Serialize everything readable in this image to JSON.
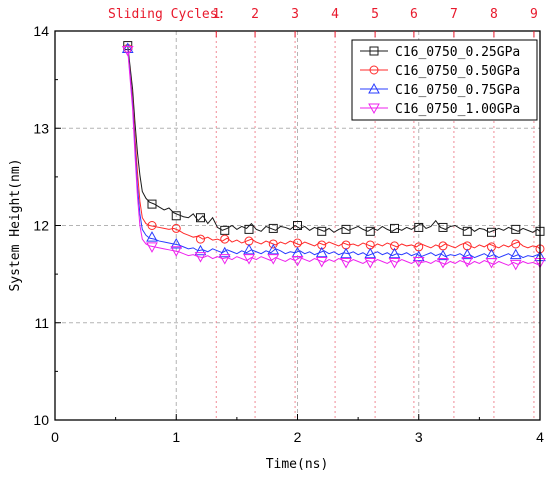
{
  "chart_data": {
    "type": "line",
    "xlabel": "Time(ns)",
    "ylabel": "System Height(nm)",
    "xlim": [
      0,
      4
    ],
    "ylim": [
      10,
      14
    ],
    "x_ticks": [
      0,
      1,
      2,
      3,
      4
    ],
    "y_ticks": [
      10,
      11,
      12,
      13,
      14
    ],
    "grid": "dashed gray at x = 1,2,3",
    "top_axis": {
      "label": "Sliding Cycles:",
      "ticks": [
        {
          "label": "1",
          "x": 1.33
        },
        {
          "label": "2",
          "x": 1.65
        },
        {
          "label": "3",
          "x": 1.98
        },
        {
          "label": "4",
          "x": 2.31
        },
        {
          "label": "5",
          "x": 2.64
        },
        {
          "label": "6",
          "x": 2.96
        },
        {
          "label": "7",
          "x": 3.29
        },
        {
          "label": "8",
          "x": 3.62
        },
        {
          "label": "9",
          "x": 3.95
        }
      ],
      "color": "#e8192c"
    },
    "legend_position": "top-right",
    "series": [
      {
        "name": "C16_0750_0.25GPa",
        "color": "#1a1a1a",
        "marker": "square",
        "x": [
          0.6,
          0.64,
          0.66,
          0.68,
          0.7,
          0.72,
          0.75,
          0.78,
          0.82,
          0.86,
          0.9,
          0.94,
          0.98,
          1.02,
          1.06,
          1.1,
          1.14,
          1.18,
          1.22,
          1.26,
          1.3,
          1.34,
          1.38,
          1.42,
          1.46,
          1.5,
          1.54,
          1.58,
          1.62,
          1.66,
          1.7,
          1.74,
          1.78,
          1.82,
          1.86,
          1.9,
          1.94,
          1.98,
          2.02,
          2.06,
          2.1,
          2.14,
          2.18,
          2.22,
          2.26,
          2.3,
          2.34,
          2.38,
          2.42,
          2.46,
          2.5,
          2.54,
          2.58,
          2.62,
          2.66,
          2.7,
          2.74,
          2.78,
          2.82,
          2.86,
          2.9,
          2.94,
          2.98,
          3.02,
          3.06,
          3.1,
          3.14,
          3.18,
          3.22,
          3.26,
          3.3,
          3.34,
          3.38,
          3.42,
          3.46,
          3.5,
          3.54,
          3.58,
          3.62,
          3.66,
          3.7,
          3.74,
          3.78,
          3.82,
          3.86,
          3.9,
          3.94,
          3.98,
          4.0
        ],
        "y": [
          13.85,
          13.4,
          13.05,
          12.75,
          12.52,
          12.35,
          12.28,
          12.24,
          12.22,
          12.19,
          12.16,
          12.18,
          12.13,
          12.11,
          12.09,
          12.08,
          12.12,
          12.05,
          12.1,
          12.02,
          12.08,
          11.98,
          11.95,
          11.97,
          12.0,
          11.96,
          11.99,
          11.97,
          12.02,
          11.96,
          11.94,
          11.99,
          11.97,
          11.95,
          11.99,
          11.98,
          11.96,
          12.0,
          11.97,
          11.99,
          11.95,
          11.98,
          11.96,
          11.94,
          11.97,
          11.93,
          11.96,
          11.98,
          11.95,
          11.97,
          11.99,
          11.96,
          11.94,
          11.97,
          11.95,
          11.99,
          11.96,
          11.94,
          11.97,
          11.95,
          11.98,
          11.96,
          11.99,
          12.02,
          11.97,
          11.99,
          12.05,
          11.98,
          11.96,
          11.99,
          12.0,
          11.97,
          11.95,
          11.98,
          11.94,
          11.97,
          11.96,
          11.93,
          11.95,
          11.97,
          11.95,
          11.98,
          11.96,
          11.94,
          11.97,
          11.95,
          11.93,
          11.96,
          11.94
        ],
        "marker_x": [
          0.6,
          0.8,
          1.0,
          1.2,
          1.4,
          1.6,
          1.8,
          2.0,
          2.2,
          2.4,
          2.6,
          2.8,
          3.0,
          3.2,
          3.4,
          3.6,
          3.8,
          4.0
        ],
        "marker_y": [
          13.85,
          12.22,
          12.1,
          12.08,
          11.95,
          11.96,
          11.97,
          12.0,
          11.94,
          11.96,
          11.94,
          11.97,
          11.98,
          11.98,
          11.94,
          11.93,
          11.96,
          11.94
        ]
      },
      {
        "name": "C16_0750_0.50GPa",
        "color": "#ff2a2a",
        "marker": "circle",
        "x": [
          0.6,
          0.64,
          0.66,
          0.68,
          0.7,
          0.72,
          0.75,
          0.78,
          0.82,
          0.86,
          0.9,
          0.94,
          0.98,
          1.02,
          1.06,
          1.1,
          1.14,
          1.18,
          1.22,
          1.26,
          1.3,
          1.34,
          1.38,
          1.42,
          1.46,
          1.5,
          1.54,
          1.58,
          1.62,
          1.66,
          1.7,
          1.74,
          1.78,
          1.82,
          1.86,
          1.9,
          1.94,
          1.98,
          2.02,
          2.06,
          2.1,
          2.14,
          2.18,
          2.22,
          2.26,
          2.3,
          2.34,
          2.38,
          2.42,
          2.46,
          2.5,
          2.54,
          2.58,
          2.62,
          2.66,
          2.7,
          2.74,
          2.78,
          2.82,
          2.86,
          2.9,
          2.94,
          2.98,
          3.02,
          3.06,
          3.1,
          3.14,
          3.18,
          3.22,
          3.26,
          3.3,
          3.34,
          3.38,
          3.42,
          3.46,
          3.5,
          3.54,
          3.58,
          3.62,
          3.66,
          3.7,
          3.74,
          3.78,
          3.82,
          3.86,
          3.9,
          3.94,
          3.98,
          4.0
        ],
        "y": [
          13.82,
          13.3,
          12.9,
          12.55,
          12.25,
          12.08,
          12.02,
          12.0,
          11.99,
          11.98,
          11.97,
          11.96,
          11.97,
          11.95,
          11.92,
          11.9,
          11.88,
          11.89,
          11.86,
          11.88,
          11.85,
          11.86,
          11.84,
          11.87,
          11.83,
          11.85,
          11.82,
          11.84,
          11.86,
          11.83,
          11.81,
          11.84,
          11.82,
          11.8,
          11.83,
          11.81,
          11.84,
          11.82,
          11.8,
          11.83,
          11.81,
          11.79,
          11.82,
          11.8,
          11.83,
          11.81,
          11.79,
          11.82,
          11.8,
          11.81,
          11.79,
          11.82,
          11.8,
          11.78,
          11.81,
          11.79,
          11.82,
          11.8,
          11.78,
          11.81,
          11.79,
          11.8,
          11.78,
          11.81,
          11.79,
          11.77,
          11.8,
          11.78,
          11.81,
          11.79,
          11.77,
          11.8,
          11.82,
          11.79,
          11.77,
          11.8,
          11.78,
          11.81,
          11.79,
          11.77,
          11.8,
          11.78,
          11.81,
          11.83,
          11.79,
          11.77,
          11.79,
          11.78,
          11.76
        ],
        "marker_x": [
          0.6,
          0.8,
          1.0,
          1.2,
          1.4,
          1.6,
          1.8,
          2.0,
          2.2,
          2.4,
          2.6,
          2.8,
          3.0,
          3.2,
          3.4,
          3.6,
          3.8,
          4.0
        ],
        "marker_y": [
          13.82,
          12.0,
          11.97,
          11.86,
          11.86,
          11.84,
          11.81,
          11.82,
          11.8,
          11.8,
          11.8,
          11.79,
          11.78,
          11.79,
          11.79,
          11.78,
          11.81,
          11.76
        ]
      },
      {
        "name": "C16_0750_0.75GPa",
        "color": "#2a3cff",
        "marker": "triangle-up",
        "x": [
          0.6,
          0.64,
          0.66,
          0.68,
          0.7,
          0.72,
          0.75,
          0.78,
          0.82,
          0.86,
          0.9,
          0.94,
          0.98,
          1.02,
          1.06,
          1.1,
          1.14,
          1.18,
          1.22,
          1.26,
          1.3,
          1.34,
          1.38,
          1.42,
          1.46,
          1.5,
          1.54,
          1.58,
          1.62,
          1.66,
          1.7,
          1.74,
          1.78,
          1.82,
          1.86,
          1.9,
          1.94,
          1.98,
          2.02,
          2.06,
          2.1,
          2.14,
          2.18,
          2.22,
          2.26,
          2.3,
          2.34,
          2.38,
          2.42,
          2.46,
          2.5,
          2.54,
          2.58,
          2.62,
          2.66,
          2.7,
          2.74,
          2.78,
          2.82,
          2.86,
          2.9,
          2.94,
          2.98,
          3.02,
          3.06,
          3.1,
          3.14,
          3.18,
          3.22,
          3.26,
          3.3,
          3.34,
          3.38,
          3.42,
          3.46,
          3.5,
          3.54,
          3.58,
          3.62,
          3.66,
          3.7,
          3.74,
          3.78,
          3.82,
          3.86,
          3.9,
          3.94,
          3.98,
          4.0
        ],
        "y": [
          13.82,
          13.25,
          12.8,
          12.4,
          12.12,
          11.96,
          11.9,
          11.87,
          11.86,
          11.84,
          11.83,
          11.82,
          11.81,
          11.8,
          11.78,
          11.76,
          11.77,
          11.74,
          11.75,
          11.73,
          11.76,
          11.74,
          11.72,
          11.75,
          11.73,
          11.71,
          11.74,
          11.72,
          11.75,
          11.73,
          11.71,
          11.74,
          11.72,
          11.76,
          11.74,
          11.71,
          11.73,
          11.72,
          11.74,
          11.71,
          11.73,
          11.7,
          11.72,
          11.74,
          11.71,
          11.73,
          11.7,
          11.72,
          11.71,
          11.73,
          11.7,
          11.72,
          11.69,
          11.71,
          11.73,
          11.7,
          11.72,
          11.69,
          11.71,
          11.7,
          11.72,
          11.69,
          11.71,
          11.68,
          11.7,
          11.72,
          11.69,
          11.71,
          11.68,
          11.7,
          11.69,
          11.71,
          11.68,
          11.7,
          11.67,
          11.69,
          11.71,
          11.68,
          11.7,
          11.67,
          11.69,
          11.71,
          11.68,
          11.7,
          11.67,
          11.69,
          11.68,
          11.7,
          11.68
        ],
        "marker_x": [
          0.6,
          0.8,
          1.0,
          1.2,
          1.4,
          1.6,
          1.8,
          2.0,
          2.2,
          2.4,
          2.6,
          2.8,
          3.0,
          3.2,
          3.4,
          3.6,
          3.8,
          4.0
        ],
        "marker_y": [
          13.82,
          11.88,
          11.81,
          11.74,
          11.72,
          11.75,
          11.75,
          11.72,
          11.72,
          11.71,
          11.71,
          11.71,
          11.68,
          11.69,
          11.7,
          11.7,
          11.7,
          11.68
        ]
      },
      {
        "name": "C16_0750_1.00GPa",
        "color": "#ee22ee",
        "marker": "triangle-down",
        "x": [
          0.6,
          0.64,
          0.66,
          0.68,
          0.7,
          0.72,
          0.75,
          0.78,
          0.82,
          0.86,
          0.9,
          0.94,
          0.98,
          1.02,
          1.06,
          1.1,
          1.14,
          1.18,
          1.22,
          1.26,
          1.3,
          1.34,
          1.38,
          1.42,
          1.46,
          1.5,
          1.54,
          1.58,
          1.62,
          1.66,
          1.7,
          1.74,
          1.78,
          1.82,
          1.86,
          1.9,
          1.94,
          1.98,
          2.02,
          2.06,
          2.1,
          2.14,
          2.18,
          2.22,
          2.26,
          2.3,
          2.34,
          2.38,
          2.42,
          2.46,
          2.5,
          2.54,
          2.58,
          2.62,
          2.66,
          2.7,
          2.74,
          2.78,
          2.82,
          2.86,
          2.9,
          2.94,
          2.98,
          3.02,
          3.06,
          3.1,
          3.14,
          3.18,
          3.22,
          3.26,
          3.3,
          3.34,
          3.38,
          3.42,
          3.46,
          3.5,
          3.54,
          3.58,
          3.62,
          3.66,
          3.7,
          3.74,
          3.78,
          3.82,
          3.86,
          3.9,
          3.94,
          3.98,
          4.0
        ],
        "y": [
          13.8,
          13.2,
          12.72,
          12.3,
          12.0,
          11.86,
          11.81,
          11.79,
          11.78,
          11.77,
          11.76,
          11.75,
          11.74,
          11.73,
          11.71,
          11.69,
          11.7,
          11.68,
          11.67,
          11.69,
          11.66,
          11.68,
          11.66,
          11.67,
          11.65,
          11.68,
          11.66,
          11.64,
          11.67,
          11.65,
          11.68,
          11.66,
          11.64,
          11.67,
          11.65,
          11.63,
          11.66,
          11.64,
          11.67,
          11.65,
          11.63,
          11.66,
          11.64,
          11.62,
          11.65,
          11.63,
          11.66,
          11.64,
          11.62,
          11.65,
          11.63,
          11.61,
          11.64,
          11.62,
          11.65,
          11.63,
          11.61,
          11.64,
          11.62,
          11.65,
          11.63,
          11.61,
          11.64,
          11.62,
          11.63,
          11.61,
          11.64,
          11.62,
          11.6,
          11.63,
          11.61,
          11.64,
          11.62,
          11.6,
          11.63,
          11.61,
          11.64,
          11.62,
          11.6,
          11.63,
          11.61,
          11.59,
          11.62,
          11.6,
          11.63,
          11.61,
          11.62,
          11.6,
          11.62
        ],
        "marker_x": [
          0.6,
          0.8,
          1.0,
          1.2,
          1.4,
          1.6,
          1.8,
          2.0,
          2.2,
          2.4,
          2.6,
          2.8,
          3.0,
          3.2,
          3.4,
          3.6,
          3.8,
          4.0
        ],
        "marker_y": [
          13.8,
          11.78,
          11.74,
          11.68,
          11.66,
          11.66,
          11.66,
          11.64,
          11.63,
          11.62,
          11.62,
          11.62,
          11.63,
          11.62,
          11.63,
          11.62,
          11.6,
          11.62
        ]
      }
    ]
  }
}
